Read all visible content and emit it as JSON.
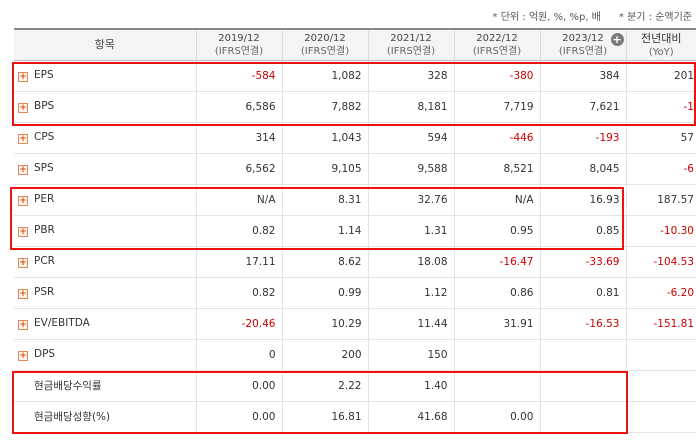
{
  "notes": {
    "unit": "* 단위 : 억원, %, %p, 배",
    "period": "* 분기 : 순액기준"
  },
  "header": {
    "item_label": "항목",
    "periods": [
      {
        "year": "2019/12",
        "basis": "(IFRS연결)"
      },
      {
        "year": "2020/12",
        "basis": "(IFRS연결)"
      },
      {
        "year": "2021/12",
        "basis": "(IFRS연결)"
      },
      {
        "year": "2022/12",
        "basis": "(IFRS연결)"
      },
      {
        "year": "2023/12",
        "basis": "(IFRS연결)"
      }
    ],
    "yoy_title": "전년대비",
    "yoy_sub": "(YoY)",
    "expand_symbol": "+"
  },
  "expand_symbol": "+",
  "rows": [
    {
      "label": "EPS",
      "values": [
        "-584",
        "1,082",
        "328",
        "-380",
        "384",
        "201"
      ]
    },
    {
      "label": "BPS",
      "values": [
        "6,586",
        "7,882",
        "8,181",
        "7,719",
        "7,621",
        "-1"
      ]
    },
    {
      "label": "CPS",
      "values": [
        "314",
        "1,043",
        "594",
        "-446",
        "-193",
        "57"
      ]
    },
    {
      "label": "SPS",
      "values": [
        "6,562",
        "9,105",
        "9,588",
        "8,521",
        "8,045",
        "-6"
      ]
    },
    {
      "label": "PER",
      "values": [
        "N/A",
        "8.31",
        "32.76",
        "N/A",
        "16.93",
        "187.57"
      ]
    },
    {
      "label": "PBR",
      "values": [
        "0.82",
        "1.14",
        "1.31",
        "0.95",
        "0.85",
        "-10.30"
      ]
    },
    {
      "label": "PCR",
      "values": [
        "17.11",
        "8.62",
        "18.08",
        "-16.47",
        "-33.69",
        "-104.53"
      ]
    },
    {
      "label": "PSR",
      "values": [
        "0.82",
        "0.99",
        "1.12",
        "0.86",
        "0.81",
        "-6.20"
      ]
    },
    {
      "label": "EV/EBITDA",
      "values": [
        "-20.46",
        "10.29",
        "11.44",
        "31.91",
        "-16.53",
        "-151.81"
      ]
    },
    {
      "label": "DPS",
      "values": [
        "0",
        "200",
        "150",
        "",
        "",
        ""
      ]
    },
    {
      "label": "현금배당수익률",
      "values": [
        "0.00",
        "2.22",
        "1.40",
        "",
        "",
        ""
      ]
    },
    {
      "label": "현금배당성향(%)",
      "values": [
        "0.00",
        "16.81",
        "41.68",
        "0.00",
        "",
        ""
      ]
    }
  ],
  "colors": {
    "negative": "#cc0000",
    "highlight_box": "#ee1111",
    "header_bg": "#f4f4f4"
  }
}
